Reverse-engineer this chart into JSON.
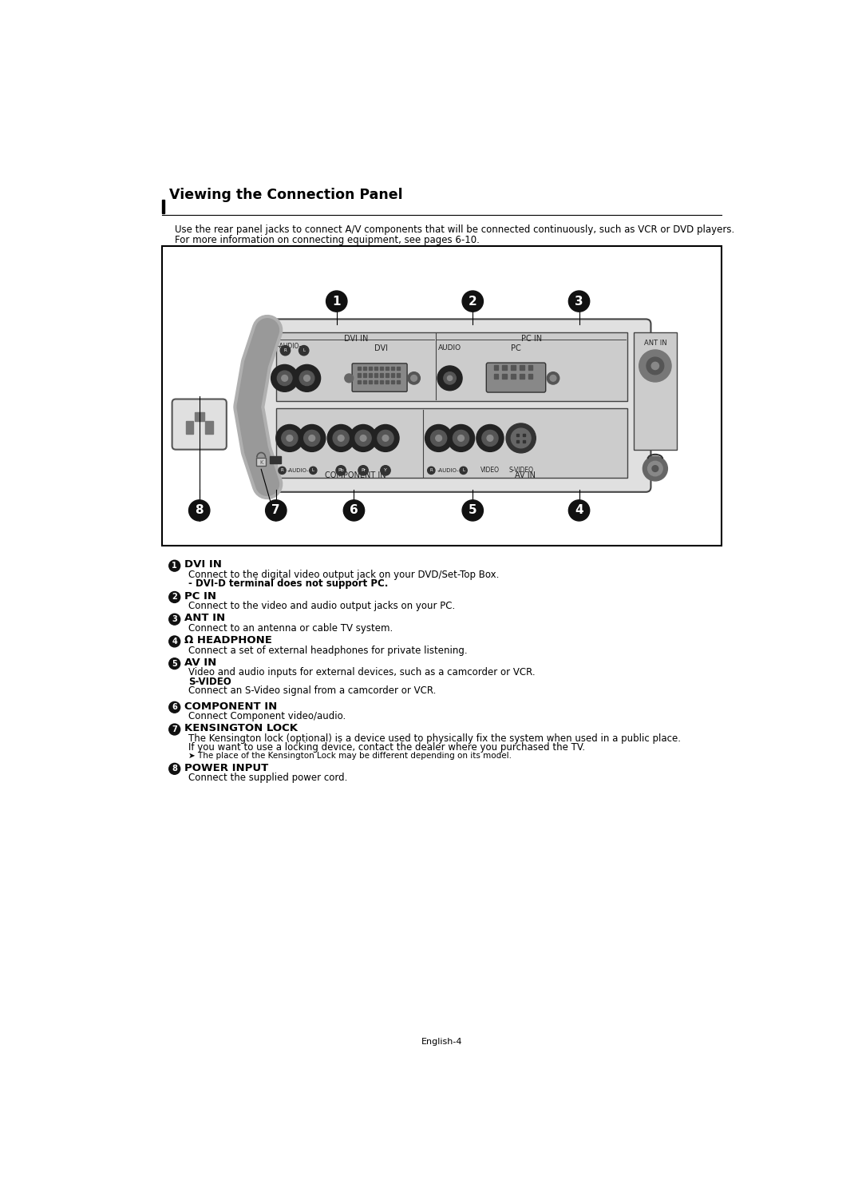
{
  "title": "Viewing the Connection Panel",
  "subtitle_line1": "Use the rear panel jacks to connect A/V components that will be connected continuously, such as VCR or DVD players.",
  "subtitle_line2": "For more information on connecting equipment, see pages 6-10.",
  "footer": "English-4",
  "bg_color": "#ffffff",
  "sections": [
    {
      "num": "1",
      "heading": "DVI IN",
      "lines": [
        {
          "text": "Connect to the digital video output jack on your DVD/Set-Top Box.",
          "bold": false,
          "indent": true
        },
        {
          "text": "- DVI-D terminal does not support PC.",
          "bold": true,
          "indent": true
        }
      ]
    },
    {
      "num": "2",
      "heading": "PC IN",
      "lines": [
        {
          "text": "Connect to the video and audio output jacks on your PC.",
          "bold": false,
          "indent": true
        }
      ]
    },
    {
      "num": "3",
      "heading": "ANT IN",
      "lines": [
        {
          "text": "Connect to an antenna or cable TV system.",
          "bold": false,
          "indent": true
        }
      ]
    },
    {
      "num": "4",
      "heading": "Ω HEADPHONE",
      "lines": [
        {
          "text": "Connect a set of external headphones for private listening.",
          "bold": false,
          "indent": true
        }
      ]
    },
    {
      "num": "5",
      "heading": "AV IN",
      "lines": [
        {
          "text": "Video and audio inputs for external devices, such as a camcorder or VCR.",
          "bold": false,
          "indent": true
        },
        {
          "text": "S-VIDEO",
          "bold": true,
          "indent": true
        },
        {
          "text": "Connect an S-Video signal from a camcorder or VCR.",
          "bold": false,
          "indent": true
        }
      ]
    },
    {
      "num": "6",
      "heading": "COMPONENT IN",
      "lines": [
        {
          "text": "Connect Component video/audio.",
          "bold": false,
          "indent": true
        }
      ]
    },
    {
      "num": "7",
      "heading": "KENSINGTON LOCK",
      "lines": [
        {
          "text": "The Kensington lock (optional) is a device used to physically fix the system when used in a public place.",
          "bold": false,
          "indent": true
        },
        {
          "text": "If you want to use a locking device, contact the dealer where you purchased the TV.",
          "bold": false,
          "indent": true
        },
        {
          "text": "➤ The place of the Kensington Lock may be different depending on its model.",
          "bold": false,
          "indent": true,
          "small": true
        }
      ]
    },
    {
      "num": "8",
      "heading": "POWER INPUT",
      "lines": [
        {
          "text": "Connect the supplied power cord.",
          "bold": false,
          "indent": true
        }
      ]
    }
  ]
}
